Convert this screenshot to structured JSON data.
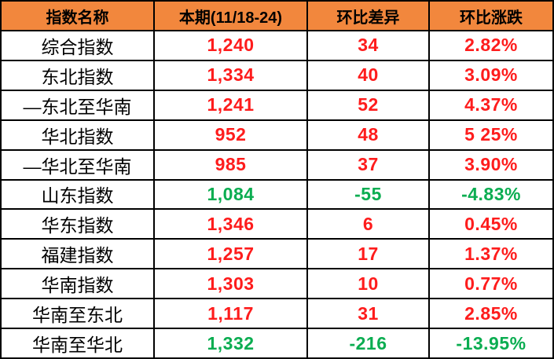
{
  "chart_data": {
    "type": "table",
    "title": "",
    "columns": [
      "指数名称",
      "本期(11/18-24)",
      "环比差异",
      "环比涨跌"
    ],
    "rows": [
      {
        "name": "综合指数",
        "current": "1,240",
        "diff": "34",
        "change": "2.82%",
        "trend": "up"
      },
      {
        "name": "东北指数",
        "current": "1,334",
        "diff": "40",
        "change": "3.09%",
        "trend": "up"
      },
      {
        "name": "—东北至华南",
        "current": "1,241",
        "diff": "52",
        "change": "4.37%",
        "trend": "up"
      },
      {
        "name": "华北指数",
        "current": "952",
        "diff": "48",
        "change": "5 25%",
        "trend": "up"
      },
      {
        "name": "—华北至华南",
        "current": "985",
        "diff": "37",
        "change": "3.90%",
        "trend": "up"
      },
      {
        "name": "山东指数",
        "current": "1,084",
        "diff": "-55",
        "change": "-4.83%",
        "trend": "down"
      },
      {
        "name": "华东指数",
        "current": "1,346",
        "diff": "6",
        "change": "0.45%",
        "trend": "up"
      },
      {
        "name": "福建指数",
        "current": "1,257",
        "diff": "17",
        "change": "1.37%",
        "trend": "up"
      },
      {
        "name": "华南指数",
        "current": "1,303",
        "diff": "10",
        "change": "0.77%",
        "trend": "up"
      },
      {
        "name": "华南至东北",
        "current": "1,117",
        "diff": "31",
        "change": "2.85%",
        "trend": "up"
      },
      {
        "name": "华南至华北",
        "current": "1,332",
        "diff": "-216",
        "change": "-13.95%",
        "trend": "down"
      }
    ],
    "colors": {
      "header_bg": "#F2873D",
      "header_text": "#000000",
      "name_text": "#000000",
      "up": "#FE1C1C",
      "down": "#0BAD51",
      "border": "#000000"
    }
  }
}
